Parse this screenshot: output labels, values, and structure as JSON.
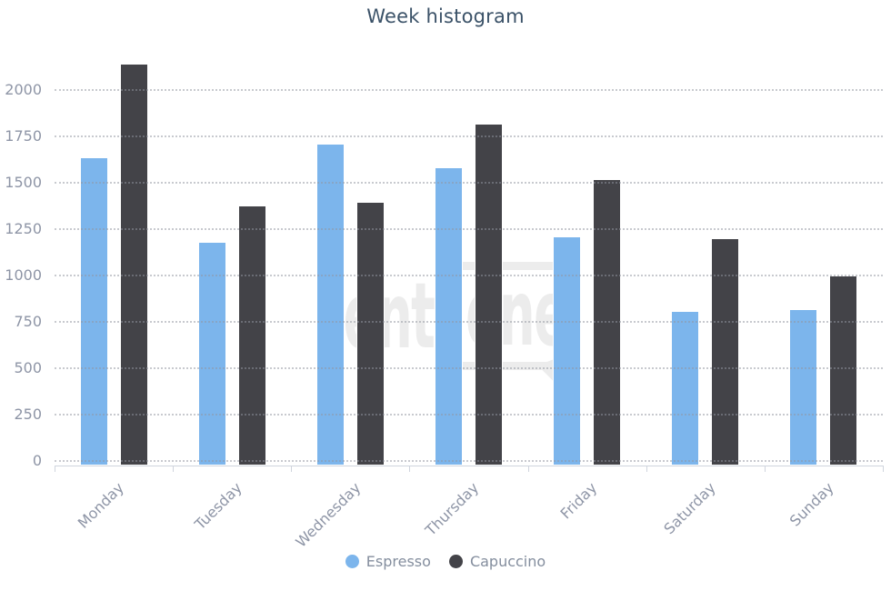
{
  "chart_data": {
    "type": "bar",
    "title": "Week histogram",
    "categories": [
      "Monday",
      "Tuesday",
      "Wednesday",
      "Thursday",
      "Friday",
      "Saturday",
      "Sunday"
    ],
    "series": [
      {
        "name": "Espresso",
        "color": "#7cb5ec",
        "values": [
          1630,
          1175,
          1705,
          1580,
          1205,
          805,
          815
        ]
      },
      {
        "name": "Capuccino",
        "color": "#434348",
        "values": [
          2135,
          1375,
          1390,
          1815,
          1515,
          1195,
          995
        ]
      }
    ],
    "xlabel": "",
    "ylabel": "",
    "yticks": [
      0,
      250,
      500,
      750,
      1000,
      1250,
      1500,
      1750,
      2000
    ],
    "ylim": [
      0,
      2200
    ],
    "grid": "horizontal-dotted",
    "gridlines_drawn_over_bars": true,
    "x_label_rotation_deg": -45,
    "legend_position": "bottom-center"
  },
  "watermark": {
    "text": "senti",
    "boxed_text": "one"
  },
  "colors": {
    "title": "#3b5268",
    "axis_label": "#8e95a6",
    "legend_label": "#848e9e",
    "grid_dot": "rgba(145,150,160,0.5)",
    "axis_line": "#cfd4dd",
    "watermark": "#ececec",
    "background": "#ffffff"
  }
}
